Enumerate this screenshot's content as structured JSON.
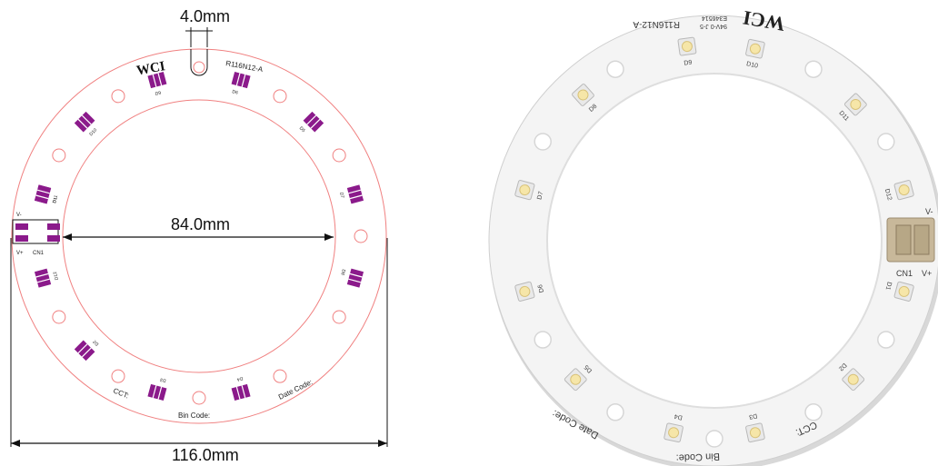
{
  "drawing": {
    "dimensions": {
      "gap": "4.0mm",
      "inner": "84.0mm",
      "outer": "116.0mm"
    },
    "brand": "WCI",
    "part_number": "R116N12-A",
    "pad_labels": [
      "D1",
      "D2",
      "D3",
      "D4",
      "D5",
      "D6",
      "D7",
      "D8",
      "D9",
      "D10",
      "D11",
      "D12"
    ],
    "connector": {
      "label": "CN1",
      "minus": "V-",
      "plus": "V+"
    },
    "text": {
      "cct": "CCT:",
      "bin_code": "Bin Code:",
      "date_code": "Date  Code:"
    },
    "colors": {
      "outline": "#f08080",
      "pad": "#8b1a8b",
      "dimension": "#111111"
    }
  },
  "photo": {
    "brand": "WCI",
    "part_number": "R116N12-A",
    "cert": "E346514",
    "rating": "94V-0  J-5",
    "led_labels": [
      "D1",
      "D2",
      "D3",
      "D4",
      "D5",
      "D6",
      "D7",
      "D8",
      "D9",
      "D10",
      "D11",
      "D12"
    ],
    "connector": {
      "label": "CN1",
      "minus": "V-",
      "plus": "V+"
    },
    "text": {
      "cct": "CCT:",
      "bin_code": "Bin Code:",
      "date_code": "Date Code:"
    },
    "colors": {
      "board": "#f4f4f4",
      "led": "#f6e6a8",
      "connector": "#c8b89a"
    }
  }
}
